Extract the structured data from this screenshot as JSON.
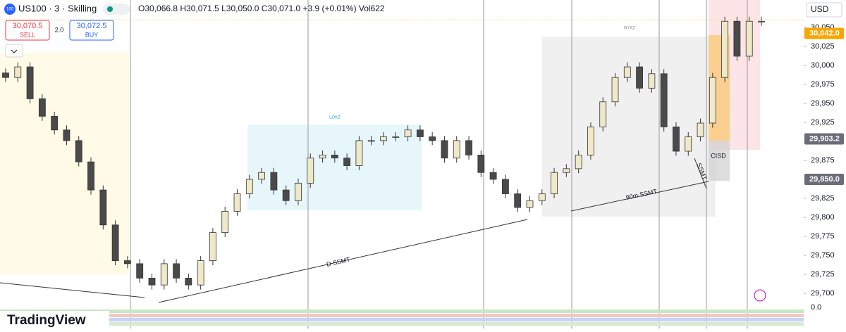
{
  "header": {
    "symbol": "US100 · 3 · Skilling",
    "badge": "100",
    "ohlc": "O30,066.8 H30,071.5 L30,050.0 C30,071.0 +3.9 (+0.01%) Vol622",
    "currency": "USD",
    "logo": "TradingView"
  },
  "trade": {
    "sell_price": "30,070.5",
    "sell": "SELL",
    "spread": "2.0",
    "buy_price": "30,072.5",
    "buy": "BUY"
  },
  "annotations": {
    "lokz": "LOKZ",
    "nykz": "NYKZ",
    "d_ssmt": "D SSMT",
    "m90_ssmt": "90m SSMT",
    "ssmt": "SSMT",
    "cisd": "CISD"
  },
  "chart_data": {
    "type": "candlestick",
    "open": [
      29990,
      29984,
      29998,
      29956,
      29933,
      29915,
      29901,
      29873,
      29836,
      29790,
      29743,
      29739,
      29720,
      29711,
      29739,
      29720,
      29711,
      29743,
      29780,
      29808,
      29831,
      29850,
      29859,
      29836,
      29822,
      29845,
      29878,
      29882,
      29878,
      29868,
      29901,
      29901,
      29906,
      29906,
      29915,
      29906,
      29901,
      29878,
      29901,
      29882,
      29859,
      29850,
      29831,
      29813,
      29822,
      29831,
      29859,
      29864,
      29882,
      29919,
      29952,
      29984,
      29998,
      29970,
      29989,
      29919,
      29887,
      29906,
      29924,
      29984,
      30058,
      30012,
      30058
    ],
    "high": [
      29996,
      30004,
      30004,
      29962,
      29939,
      29921,
      29907,
      29879,
      29842,
      29796,
      29749,
      29745,
      29726,
      29745,
      29745,
      29726,
      29749,
      29786,
      29814,
      29837,
      29856,
      29865,
      29865,
      29842,
      29851,
      29884,
      29888,
      29888,
      29884,
      29907,
      29907,
      29912,
      29912,
      29921,
      29921,
      29912,
      29907,
      29907,
      29907,
      29888,
      29865,
      29856,
      29837,
      29828,
      29837,
      29865,
      29870,
      29888,
      29925,
      29958,
      29990,
      30004,
      30004,
      29995,
      29995,
      29925,
      29912,
      29930,
      29990,
      30064,
      30064,
      30064,
      30064
    ],
    "low": [
      29978,
      29978,
      29950,
      29927,
      29909,
      29895,
      29867,
      29830,
      29784,
      29737,
      29733,
      29714,
      29705,
      29705,
      29714,
      29705,
      29705,
      29737,
      29774,
      29802,
      29825,
      29844,
      29830,
      29816,
      29816,
      29839,
      29872,
      29872,
      29862,
      29862,
      29895,
      29895,
      29900,
      29900,
      29900,
      29895,
      29872,
      29872,
      29876,
      29853,
      29844,
      29825,
      29807,
      29807,
      29816,
      29825,
      29853,
      29858,
      29876,
      29913,
      29946,
      29978,
      29964,
      29964,
      29913,
      29881,
      29881,
      29900,
      29918,
      29978,
      30006,
      30006,
      30052
    ],
    "close": [
      29984,
      29998,
      29956,
      29933,
      29915,
      29901,
      29873,
      29836,
      29790,
      29743,
      29739,
      29720,
      29711,
      29739,
      29720,
      29711,
      29743,
      29780,
      29808,
      29831,
      29850,
      29859,
      29836,
      29822,
      29845,
      29878,
      29882,
      29878,
      29868,
      29901,
      29901,
      29906,
      29906,
      29915,
      29906,
      29901,
      29878,
      29901,
      29882,
      29859,
      29850,
      29831,
      29813,
      29822,
      29831,
      29859,
      29864,
      29882,
      29919,
      29952,
      29984,
      29998,
      29970,
      29989,
      29919,
      29887,
      29906,
      29924,
      29984,
      30058,
      30012,
      30058,
      30058
    ],
    "up_color": "#efe9c9",
    "down_color": "#4a4a4a",
    "ylim": [
      29688,
      30086
    ],
    "yticks": [
      {
        "value": 29700,
        "label": "29,700"
      },
      {
        "value": 29725,
        "label": "29,725"
      },
      {
        "value": 29750,
        "label": "29,750"
      },
      {
        "value": 29775,
        "label": "29,775"
      },
      {
        "value": 29800,
        "label": "29,800"
      },
      {
        "value": 29825,
        "label": "29,825"
      },
      {
        "value": 29850,
        "label": "29,850"
      },
      {
        "value": 29875,
        "label": "29,875"
      },
      {
        "value": 29900,
        "label": "29,900"
      },
      {
        "value": 29925,
        "label": "29,925"
      },
      {
        "value": 29950,
        "label": "29,950"
      },
      {
        "value": 29975,
        "label": "29,975"
      },
      {
        "value": 30000,
        "label": "30,000"
      },
      {
        "value": 30025,
        "label": "30,025"
      },
      {
        "value": 30050,
        "label": "30,050"
      }
    ],
    "price_tags": [
      {
        "value": 30042,
        "label": "30,042.0",
        "color": "#f7a600"
      },
      {
        "value": 29903.2,
        "label": "29,903.2",
        "color": "#6a6d78"
      },
      {
        "value": 29850,
        "label": "29,850.0",
        "color": "#6a6d78"
      }
    ],
    "volume_label": "0.0"
  }
}
